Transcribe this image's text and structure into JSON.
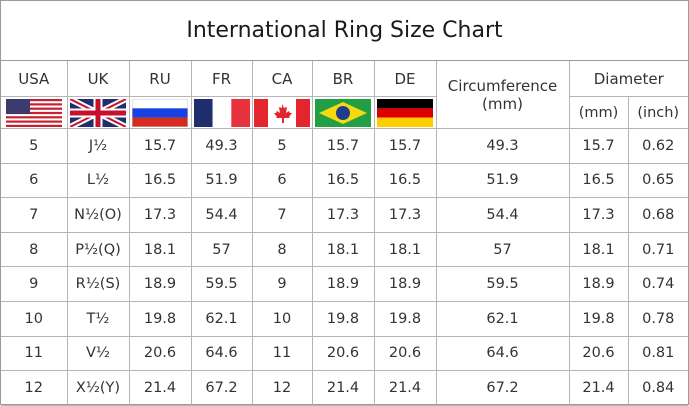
{
  "title": "International Ring Size Chart",
  "headers": {
    "usa": "USA",
    "uk": "UK",
    "ru": "RU",
    "fr": "FR",
    "ca": "CA",
    "br": "BR",
    "de": "DE",
    "circumference": "Circumference",
    "circumference_unit": "(mm)",
    "diameter": "Diameter",
    "diameter_mm": "(mm)",
    "diameter_inch": "(inch)"
  },
  "flags": [
    "us-flag",
    "uk-flag",
    "russia-flag",
    "france-flag",
    "canada-flag",
    "brazil-flag",
    "germany-flag"
  ],
  "rows": [
    [
      "5",
      "J½",
      "15.7",
      "49.3",
      "5",
      "15.7",
      "15.7",
      "49.3",
      "15.7",
      "0.62"
    ],
    [
      "6",
      "L½",
      "16.5",
      "51.9",
      "6",
      "16.5",
      "16.5",
      "51.9",
      "16.5",
      "0.65"
    ],
    [
      "7",
      "N½(O)",
      "17.3",
      "54.4",
      "7",
      "17.3",
      "17.3",
      "54.4",
      "17.3",
      "0.68"
    ],
    [
      "8",
      "P½(Q)",
      "18.1",
      "57",
      "8",
      "18.1",
      "18.1",
      "57",
      "18.1",
      "0.71"
    ],
    [
      "9",
      "R½(S)",
      "18.9",
      "59.5",
      "9",
      "18.9",
      "18.9",
      "59.5",
      "18.9",
      "0.74"
    ],
    [
      "10",
      "T½",
      "19.8",
      "62.1",
      "10",
      "19.8",
      "19.8",
      "62.1",
      "19.8",
      "0.78"
    ],
    [
      "11",
      "V½",
      "20.6",
      "64.6",
      "11",
      "20.6",
      "20.6",
      "64.6",
      "20.6",
      "0.81"
    ],
    [
      "12",
      "X½(Y)",
      "21.4",
      "67.2",
      "12",
      "21.4",
      "21.4",
      "67.2",
      "21.4",
      "0.84"
    ]
  ]
}
